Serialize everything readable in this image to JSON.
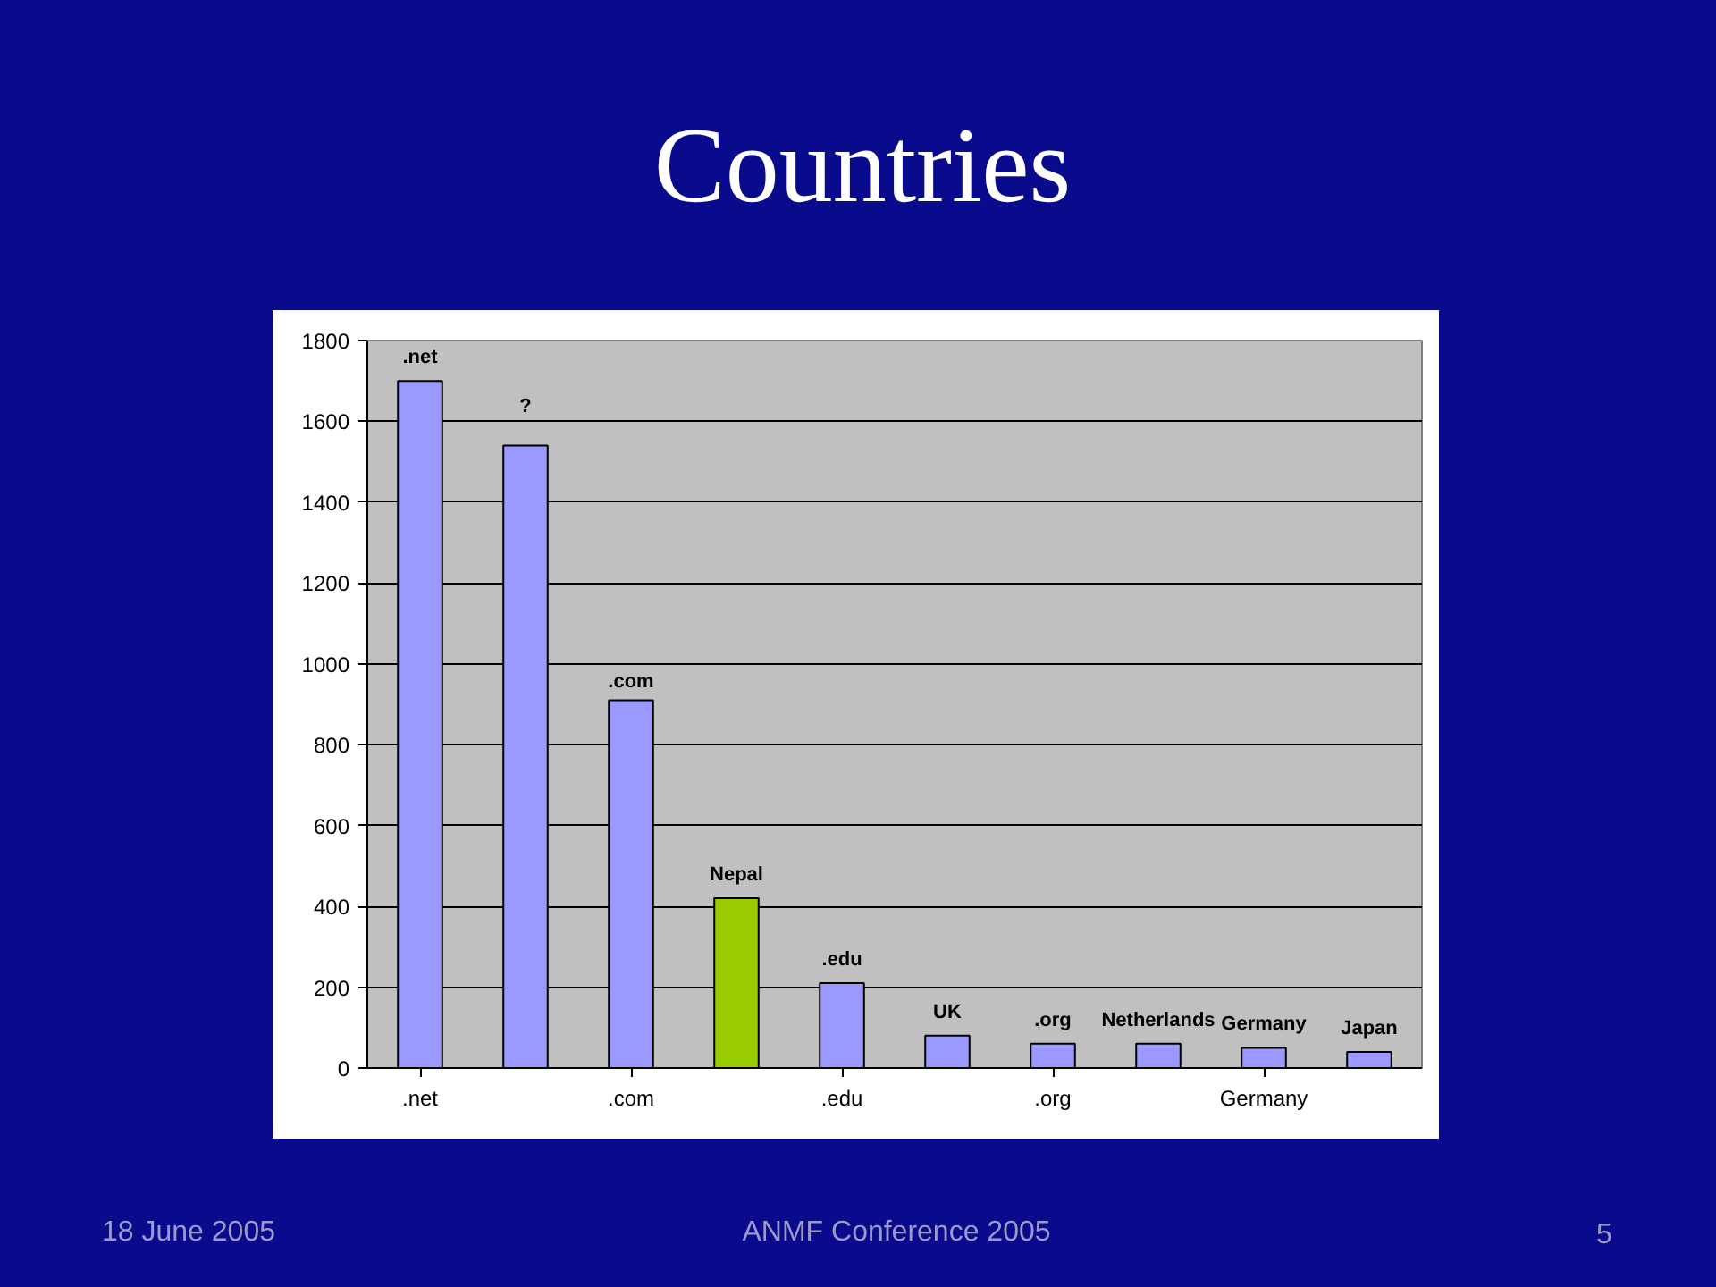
{
  "chart_data": {
    "type": "bar",
    "title": "Countries",
    "categories": [
      ".net",
      null,
      ".com",
      null,
      ".edu",
      null,
      ".org",
      null,
      "Germany",
      null
    ],
    "values": [
      1700,
      1540,
      910,
      420,
      210,
      80,
      60,
      60,
      50,
      40
    ],
    "value_labels": [
      ".net",
      "?",
      ".com",
      "Nepal",
      ".edu",
      "UK",
      ".org",
      "Netherlands",
      "Germany",
      "Japan"
    ],
    "colors": [
      "#9999ff",
      "#9999ff",
      "#9999ff",
      "#99cc00",
      "#9999ff",
      "#9999ff",
      "#9999ff",
      "#9999ff",
      "#9999ff",
      "#9999ff"
    ],
    "ylim": [
      0,
      1800
    ],
    "yticks": [
      0,
      200,
      400,
      600,
      800,
      1000,
      1200,
      1400,
      1600,
      1800
    ],
    "grid": "y",
    "annotations": [
      "18 June 2005",
      "ANMF Conference 2005",
      "5"
    ]
  }
}
